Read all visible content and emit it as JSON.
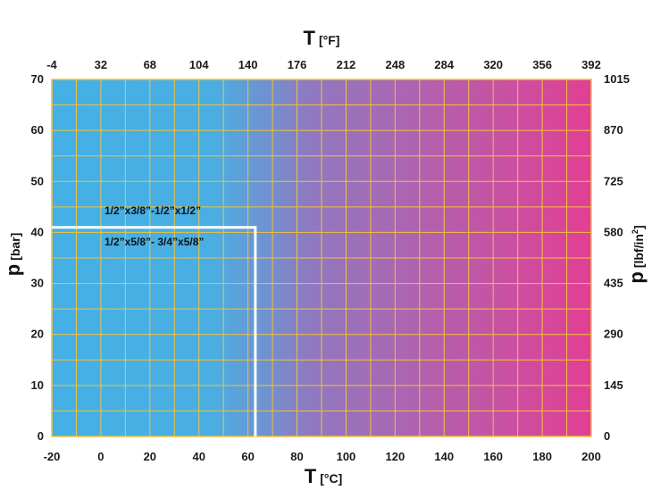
{
  "chart_data": {
    "type": "area",
    "x_bottom": {
      "symbol": "T",
      "unit": "[°C]",
      "ticks": [
        -20,
        0,
        20,
        40,
        60,
        80,
        100,
        120,
        140,
        160,
        180,
        200
      ],
      "range": [
        -20,
        200
      ]
    },
    "x_top": {
      "symbol": "T",
      "unit": "[°F]",
      "ticks": [
        -4,
        32,
        68,
        104,
        140,
        176,
        212,
        248,
        284,
        320,
        356,
        392
      ]
    },
    "y_left": {
      "symbol": "p",
      "unit": "[bar]",
      "ticks": [
        0,
        10,
        20,
        30,
        40,
        50,
        60,
        70
      ],
      "range": [
        0,
        70
      ]
    },
    "y_right": {
      "symbol": "p",
      "unit_base": "[lbf/in",
      "unit_sup": "2",
      "unit_end": "]",
      "ticks": [
        0,
        145,
        290,
        435,
        580,
        725,
        870,
        1015
      ]
    },
    "grid": true,
    "colors": {
      "start": "#44b0e6",
      "end": "#e23f94",
      "grid": "#f2c23a",
      "boundary": "#ffffff"
    },
    "boundary": {
      "points": [
        [
          -20,
          41
        ],
        [
          63,
          41
        ],
        [
          63,
          0
        ]
      ]
    },
    "annotations": [
      "1/2”x3/8”-1/2”x1/2”",
      "1/2”x5/8”- 3/4”x5/8”"
    ]
  }
}
